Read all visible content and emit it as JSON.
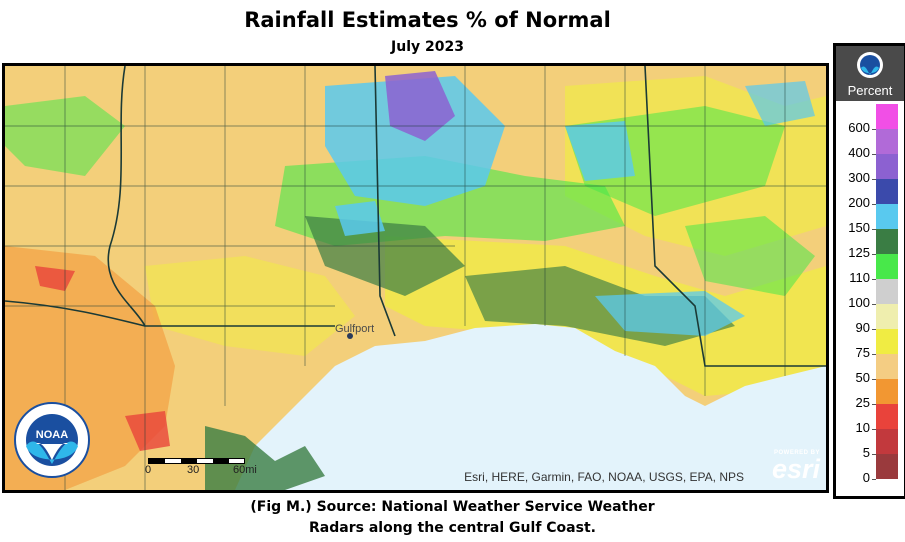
{
  "title": "Rainfall Estimates % of Normal",
  "subtitle": "July 2023",
  "caption_line1": "(Fig M.) Source: National Weather Service Weather",
  "caption_line2": "Radars along the central Gulf Coast.",
  "map": {
    "attribution": "Esri, HERE, Garmin, FAO, NOAA, USGS, EPA, NPS",
    "esri_powered": "POWERED BY",
    "esri_name": "esri",
    "scale_labels": [
      "0",
      "30",
      "60mi"
    ],
    "place_label": "Gulfport",
    "noaa_logo_text": "NOAA",
    "colors": {
      "gulf_water": "#e3f3fb",
      "border_line": "#1b3a36",
      "base_fill": "#f3cf7a"
    }
  },
  "legend": {
    "header_icon": "noaa-icon",
    "title": "Percent",
    "entries": [
      {
        "label": "600",
        "color": "#f14fe6"
      },
      {
        "label": "400",
        "color": "#b16ad8"
      },
      {
        "label": "300",
        "color": "#8c61d1"
      },
      {
        "label": "200",
        "color": "#3b4aab"
      },
      {
        "label": "150",
        "color": "#59c9ef"
      },
      {
        "label": "125",
        "color": "#3a7d44"
      },
      {
        "label": "110",
        "color": "#48e84a"
      },
      {
        "label": "100",
        "color": "#cfcfcf"
      },
      {
        "label": "90",
        "color": "#efeeae"
      },
      {
        "label": "75",
        "color": "#f0ec43"
      },
      {
        "label": "50",
        "color": "#f4cd83"
      },
      {
        "label": "25",
        "color": "#f29732"
      },
      {
        "label": "10",
        "color": "#e9433b"
      },
      {
        "label": "5",
        "color": "#c2393d"
      },
      {
        "label": "0",
        "color": "#9a3a3d"
      }
    ]
  }
}
